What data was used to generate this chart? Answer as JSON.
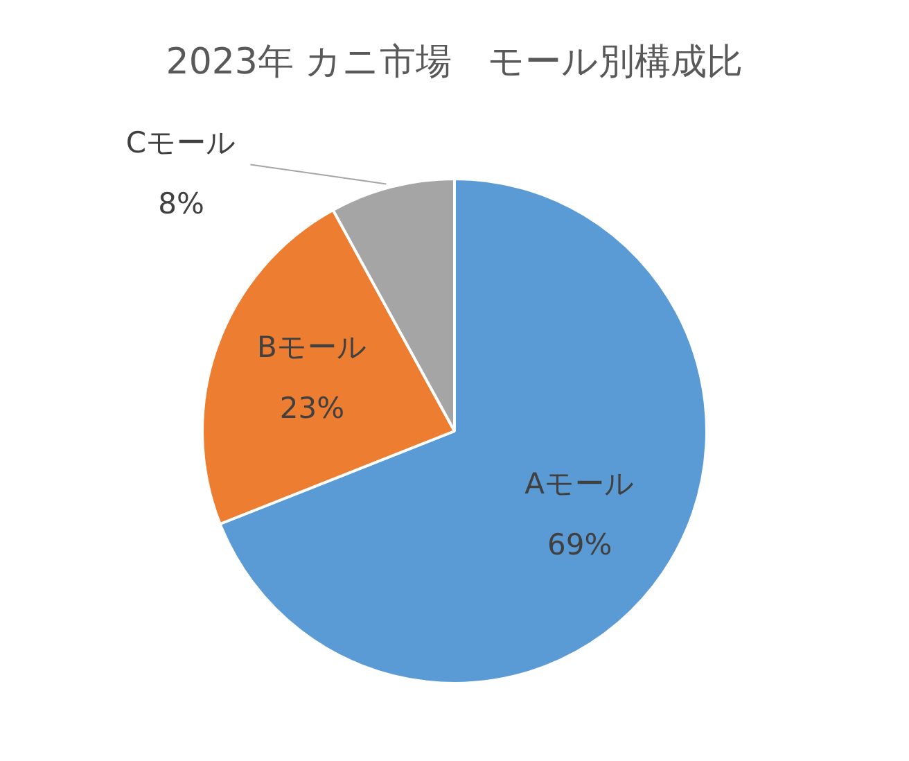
{
  "chart_data": {
    "type": "pie",
    "title": "2023年 カニ市場　モール別構成比",
    "categories": [
      "Aモール",
      "Bモール",
      "Cモール"
    ],
    "values": [
      69,
      23,
      8
    ],
    "colors": [
      "#5b9bd5",
      "#ed7d31",
      "#a5a5a5"
    ],
    "value_labels": [
      "69%",
      "23%",
      "8%"
    ],
    "legend": false
  }
}
